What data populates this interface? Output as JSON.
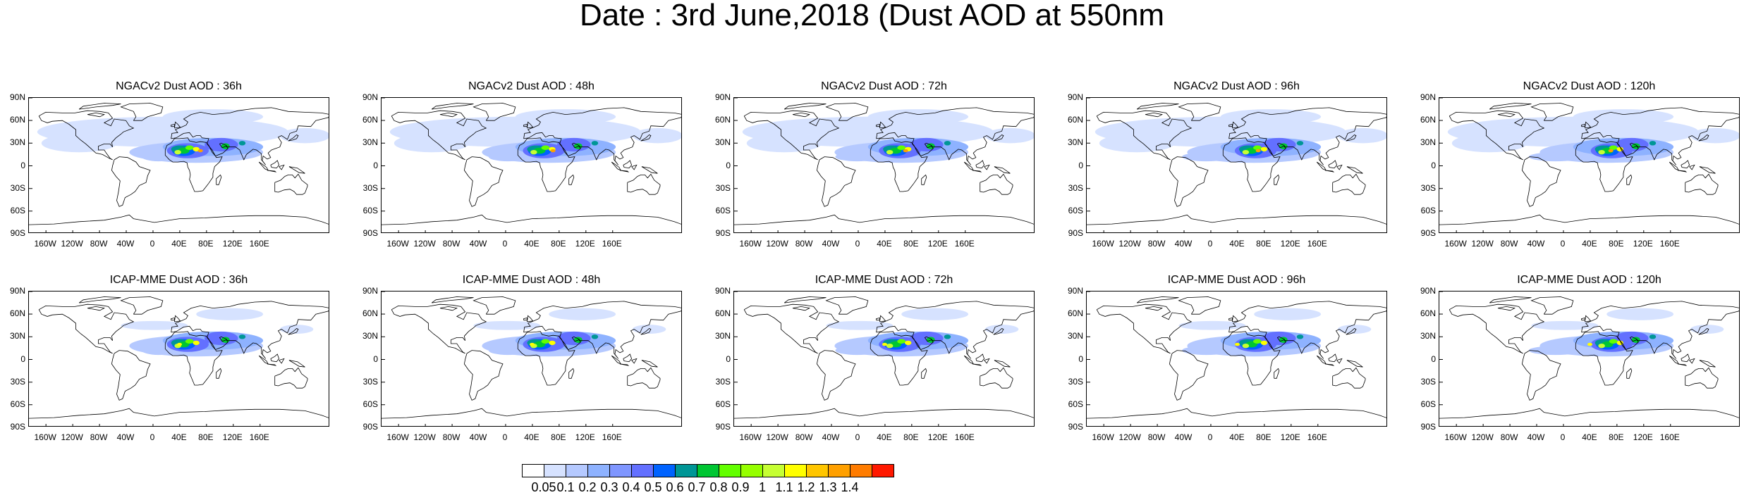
{
  "title": "Date : 3rd June,2018 (Dust AOD at 550nm",
  "panels": [
    {
      "title": "NGACv2 Dust AOD : 36h"
    },
    {
      "title": "NGACv2 Dust AOD : 48h"
    },
    {
      "title": "NGACv2 Dust AOD : 72h"
    },
    {
      "title": "NGACv2 Dust AOD : 96h"
    },
    {
      "title": "NGACv2 Dust AOD : 120h"
    },
    {
      "title": "ICAP-MME Dust AOD : 36h"
    },
    {
      "title": "ICAP-MME Dust AOD : 48h"
    },
    {
      "title": "ICAP-MME Dust AOD : 72h"
    },
    {
      "title": "ICAP-MME Dust AOD : 96h"
    },
    {
      "title": "ICAP-MME Dust AOD : 120h"
    }
  ],
  "lat_labels": [
    "90N",
    "60N",
    "30N",
    "0",
    "30S",
    "60S",
    "90S"
  ],
  "lon_labels": [
    "160W",
    "120W",
    "80W",
    "40W",
    "0",
    "40E",
    "80E",
    "120E",
    "160E"
  ],
  "colorbar": {
    "labels": [
      "0.05",
      "0.1",
      "0.2",
      "0.3",
      "0.4",
      "0.5",
      "0.6",
      "0.7",
      "0.8",
      "0.9",
      "1",
      "1.1",
      "1.2",
      "1.3",
      "1.4"
    ],
    "colors": [
      "#ffffff",
      "#d6e2ff",
      "#b5c9ff",
      "#8eb2ff",
      "#7f96ff",
      "#6370ff",
      "#0063ff",
      "#009696",
      "#00c633",
      "#63ff00",
      "#96ff00",
      "#c6ff33",
      "#ffff00",
      "#ffc600",
      "#ffa000",
      "#ff7c00",
      "#ff1900"
    ]
  }
}
